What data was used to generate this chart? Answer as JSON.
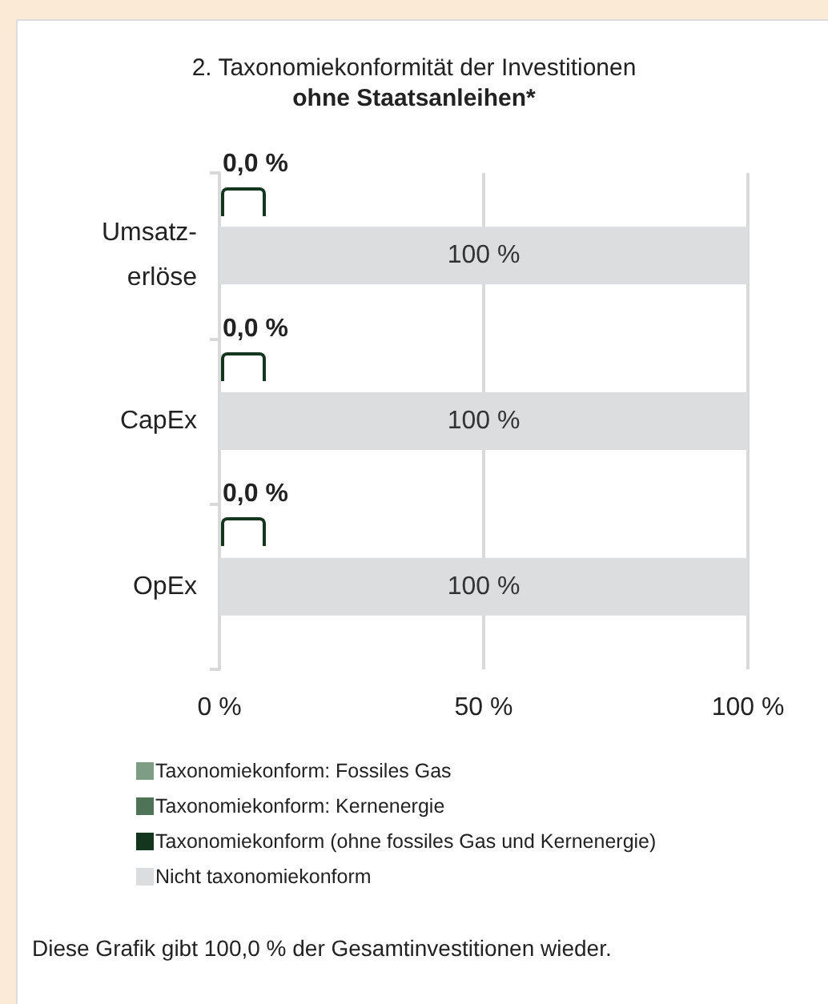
{
  "chart_data": {
    "type": "bar",
    "orientation": "horizontal",
    "stacked": true,
    "title": "2. Taxonomiekonformität der Investitionen",
    "subtitle": "ohne Staatsanleihen*",
    "categories": [
      "Umsatz-\nerlöse",
      "CapEx",
      "OpEx"
    ],
    "series": [
      {
        "name": "Taxonomiekonform: Fossiles Gas",
        "color": "#7f9c85",
        "values": [
          0,
          0,
          0
        ]
      },
      {
        "name": "Taxonomiekonform: Kernenergie",
        "color": "#4e7356",
        "values": [
          0,
          0,
          0
        ]
      },
      {
        "name": "Taxonomiekonform (ohne fossiles Gas und Kernenergie)",
        "color": "#14361f",
        "values": [
          0,
          0,
          0
        ]
      },
      {
        "name": "Nicht taxonomiekonform",
        "color": "#dcdddf",
        "values": [
          100,
          100,
          100
        ],
        "value_labels": [
          "100 %",
          "100 %",
          "100 %"
        ]
      }
    ],
    "xlim": [
      0,
      100
    ],
    "xticks": [
      {
        "value": 0,
        "label": "0 %"
      },
      {
        "value": 50,
        "label": "50 %"
      },
      {
        "value": 100,
        "label": "100 %"
      }
    ],
    "grid": "x",
    "legend": "bottom",
    "annotations": [
      "0,0 %",
      "0,0 %",
      "0,0 %",
      "Diese Grafik gibt 100,0 % der Gesamtinvestitionen wieder."
    ]
  }
}
